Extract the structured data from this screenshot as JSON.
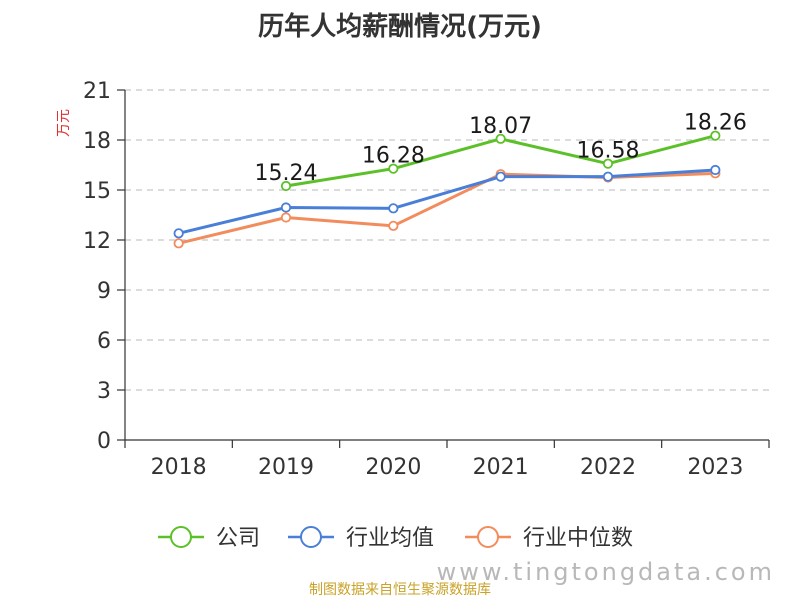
{
  "chart_data": {
    "type": "line",
    "title": "历年人均薪酬情况(万元)",
    "ylabel": "万元",
    "xlabel": "",
    "categories": [
      "2018",
      "2019",
      "2020",
      "2021",
      "2022",
      "2023"
    ],
    "ylim": [
      0,
      21
    ],
    "yticks": [
      0,
      3,
      6,
      9,
      12,
      15,
      18,
      21
    ],
    "grid": true,
    "legend_position": "bottom",
    "series": [
      {
        "name": "公司",
        "color": "#5cc129",
        "values": [
          null,
          15.24,
          16.28,
          18.07,
          16.58,
          18.26
        ],
        "labels": [
          "",
          "15.24",
          "16.28",
          "18.07",
          "16.58",
          "18.26"
        ]
      },
      {
        "name": "行业均值",
        "color": "#4a7fd8",
        "values": [
          12.4,
          13.95,
          13.9,
          15.8,
          15.8,
          16.2
        ]
      },
      {
        "name": "行业中位数",
        "color": "#f28c5c",
        "values": [
          11.8,
          13.35,
          12.85,
          15.95,
          15.75,
          16.0
        ]
      }
    ]
  },
  "footer": {
    "source": "制图数据来自恒生聚源数据库",
    "watermark": "www.tingtongdata.com"
  }
}
